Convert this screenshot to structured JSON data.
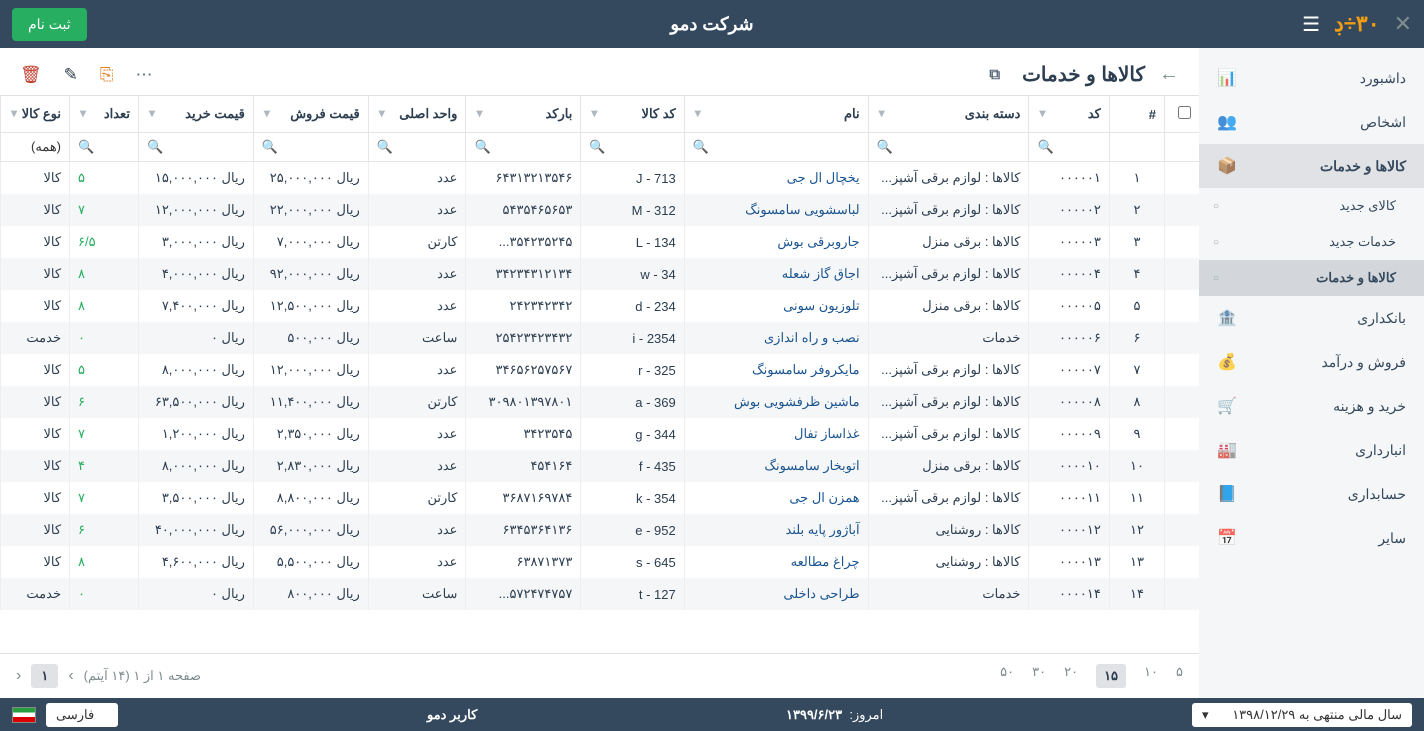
{
  "topbar": {
    "title": "شرکت دمو",
    "signup": "ثبت نام"
  },
  "sidebar": {
    "items": [
      {
        "label": "داشبورد",
        "icon": "📊"
      },
      {
        "label": "اشخاص",
        "icon": "👥"
      },
      {
        "label": "کالاها و خدمات",
        "icon": "📦",
        "active": true,
        "sub": [
          {
            "label": "کالای جدید"
          },
          {
            "label": "خدمات جدید"
          },
          {
            "label": "کالاها و خدمات",
            "active": true
          }
        ]
      },
      {
        "label": "بانکداری",
        "icon": "🏦"
      },
      {
        "label": "فروش و درآمد",
        "icon": "💰"
      },
      {
        "label": "خرید و هزینه",
        "icon": "🛒"
      },
      {
        "label": "انبارداری",
        "icon": "🏭"
      },
      {
        "label": "حسابداری",
        "icon": "📘"
      },
      {
        "label": "سایر",
        "icon": "📅"
      }
    ]
  },
  "page": {
    "title": "کالاها و خدمات"
  },
  "columns": [
    "",
    "#",
    "کد",
    "دسته بندی",
    "نام",
    "کد کالا",
    "بارکد",
    "واحد اصلی",
    "قیمت فروش",
    "قیمت خرید",
    "تعداد",
    "نوع کالا"
  ],
  "search_all": "(همه)",
  "rows": [
    {
      "i": "۱",
      "code": "۰۰۰۰۰۱",
      "cat": "کالاها : لوازم برقی آشپز...",
      "name": "یخچال ال جی",
      "icode": "J - 713",
      "bar": "۶۴۳۱۳۲۱۳۵۴۶",
      "unit": "عدد",
      "sale": "ریال ۲۵,۰۰۰,۰۰۰",
      "buy": "ریال ۱۵,۰۰۰,۰۰۰",
      "qty": "۵",
      "type": "کالا"
    },
    {
      "i": "۲",
      "code": "۰۰۰۰۰۲",
      "cat": "کالاها : لوازم برقی آشپز...",
      "name": "لباسشویی سامسونگ",
      "icode": "M - 312",
      "bar": "۵۴۳۵۴۶۵۶۵۳",
      "unit": "عدد",
      "sale": "ریال ۲۲,۰۰۰,۰۰۰",
      "buy": "ریال ۱۲,۰۰۰,۰۰۰",
      "qty": "۷",
      "type": "کالا"
    },
    {
      "i": "۳",
      "code": "۰۰۰۰۰۳",
      "cat": "کالاها : برقی منزل",
      "name": "جاروبرقی بوش",
      "icode": "L - 134",
      "bar": "۳۵۴۲۳۵۲۴۵...",
      "unit": "کارتن",
      "sale": "ریال ۷,۰۰۰,۰۰۰",
      "buy": "ریال ۳,۰۰۰,۰۰۰",
      "qty": "۶/۵",
      "type": "کالا"
    },
    {
      "i": "۴",
      "code": "۰۰۰۰۰۴",
      "cat": "کالاها : لوازم برقی آشپز...",
      "name": "اجاق گاز شعله",
      "icode": "w - 34",
      "bar": "۳۴۲۳۴۳۱۲۱۳۴",
      "unit": "عدد",
      "sale": "ریال ۹۲,۰۰۰,۰۰۰",
      "buy": "ریال ۴,۰۰۰,۰۰۰",
      "qty": "۸",
      "type": "کالا"
    },
    {
      "i": "۵",
      "code": "۰۰۰۰۰۵",
      "cat": "کالاها : برقی منزل",
      "name": "تلوزیون سونی",
      "icode": "d - 234",
      "bar": "۲۴۲۳۴۲۳۴۲",
      "unit": "عدد",
      "sale": "ریال ۱۲,۵۰۰,۰۰۰",
      "buy": "ریال ۷,۴۰۰,۰۰۰",
      "qty": "۸",
      "type": "کالا"
    },
    {
      "i": "۶",
      "code": "۰۰۰۰۰۶",
      "cat": "خدمات",
      "name": "نصب و راه اندازی",
      "icode": "i - 2354",
      "bar": "۲۵۴۲۳۴۲۳۴۳۲",
      "unit": "ساعت",
      "sale": "ریال ۵۰۰,۰۰۰",
      "buy": "ریال ۰",
      "qty": "۰",
      "type": "خدمت"
    },
    {
      "i": "۷",
      "code": "۰۰۰۰۰۷",
      "cat": "کالاها : لوازم برقی آشپز...",
      "name": "مایکروفر سامسونگ",
      "icode": "r - 325",
      "bar": "۳۴۶۵۶۲۵۷۵۶۷",
      "unit": "عدد",
      "sale": "ریال ۱۲,۰۰۰,۰۰۰",
      "buy": "ریال ۸,۰۰۰,۰۰۰",
      "qty": "۵",
      "type": "کالا"
    },
    {
      "i": "۸",
      "code": "۰۰۰۰۰۸",
      "cat": "کالاها : لوازم برقی آشپز...",
      "name": "ماشین ظرفشویی بوش",
      "icode": "a - 369",
      "bar": "۳۰۹۸۰۱۳۹۷۸۰۱",
      "unit": "کارتن",
      "sale": "ریال ۱۱,۴۰۰,۰۰۰",
      "buy": "ریال ۶۳,۵۰۰,۰۰۰",
      "qty": "۶",
      "type": "کالا"
    },
    {
      "i": "۹",
      "code": "۰۰۰۰۰۹",
      "cat": "کالاها : لوازم برقی آشپز...",
      "name": "غذاساز تفال",
      "icode": "g - 344",
      "bar": "۳۴۲۳۵۴۵",
      "unit": "عدد",
      "sale": "ریال ۲,۳۵۰,۰۰۰",
      "buy": "ریال ۱,۲۰۰,۰۰۰",
      "qty": "۷",
      "type": "کالا"
    },
    {
      "i": "۱۰",
      "code": "۰۰۰۰۱۰",
      "cat": "کالاها : برقی منزل",
      "name": "اتوبخار سامسونگ",
      "icode": "f - 435",
      "bar": "۴۵۴۱۶۴",
      "unit": "عدد",
      "sale": "ریال ۲,۸۳۰,۰۰۰",
      "buy": "ریال ۸,۰۰۰,۰۰۰",
      "qty": "۴",
      "type": "کالا"
    },
    {
      "i": "۱۱",
      "code": "۰۰۰۰۱۱",
      "cat": "کالاها : لوازم برقی آشپز...",
      "name": "همزن ال جی",
      "icode": "k - 354",
      "bar": "۳۶۸۷۱۶۹۷۸۴",
      "unit": "کارتن",
      "sale": "ریال ۸,۸۰۰,۰۰۰",
      "buy": "ریال ۳,۵۰۰,۰۰۰",
      "qty": "۷",
      "type": "کالا"
    },
    {
      "i": "۱۲",
      "code": "۰۰۰۰۱۲",
      "cat": "کالاها : روشنایی",
      "name": "آباژور پایه بلند",
      "icode": "e - 952",
      "bar": "۶۳۴۵۳۶۴۱۳۶",
      "unit": "عدد",
      "sale": "ریال ۵۶,۰۰۰,۰۰۰",
      "buy": "ریال ۴۰,۰۰۰,۰۰۰",
      "qty": "۶",
      "type": "کالا"
    },
    {
      "i": "۱۳",
      "code": "۰۰۰۰۱۳",
      "cat": "کالاها : روشنایی",
      "name": "چراغ مطالعه",
      "icode": "s - 645",
      "bar": "۶۳۸۷۱۳۷۳",
      "unit": "عدد",
      "sale": "ریال ۵,۵۰۰,۰۰۰",
      "buy": "ریال ۴,۶۰۰,۰۰۰",
      "qty": "۸",
      "type": "کالا"
    },
    {
      "i": "۱۴",
      "code": "۰۰۰۰۱۴",
      "cat": "خدمات",
      "name": "طراحی داخلی",
      "icode": "t - 127",
      "bar": "۵۷۲۴۷۴۷۵۷...",
      "unit": "ساعت",
      "sale": "ریال ۸۰۰,۰۰۰",
      "buy": "ریال ۰",
      "qty": "۰",
      "type": "خدمت"
    }
  ],
  "pager": {
    "sizes": [
      "۵",
      "۱۰",
      "۱۵",
      "۲۰",
      "۳۰",
      "۵۰"
    ],
    "active": "۱۵",
    "info": "صفحه ۱ از ۱ (۱۴ آیتم)",
    "page": "۱"
  },
  "status": {
    "fy": "سال مالی منتهی به ۱۳۹۸/۱۲/۲۹",
    "today_label": "امروز:",
    "today": "۱۳۹۹/۶/۲۳",
    "user": "کاربر دمو",
    "lang": "فارسی"
  }
}
